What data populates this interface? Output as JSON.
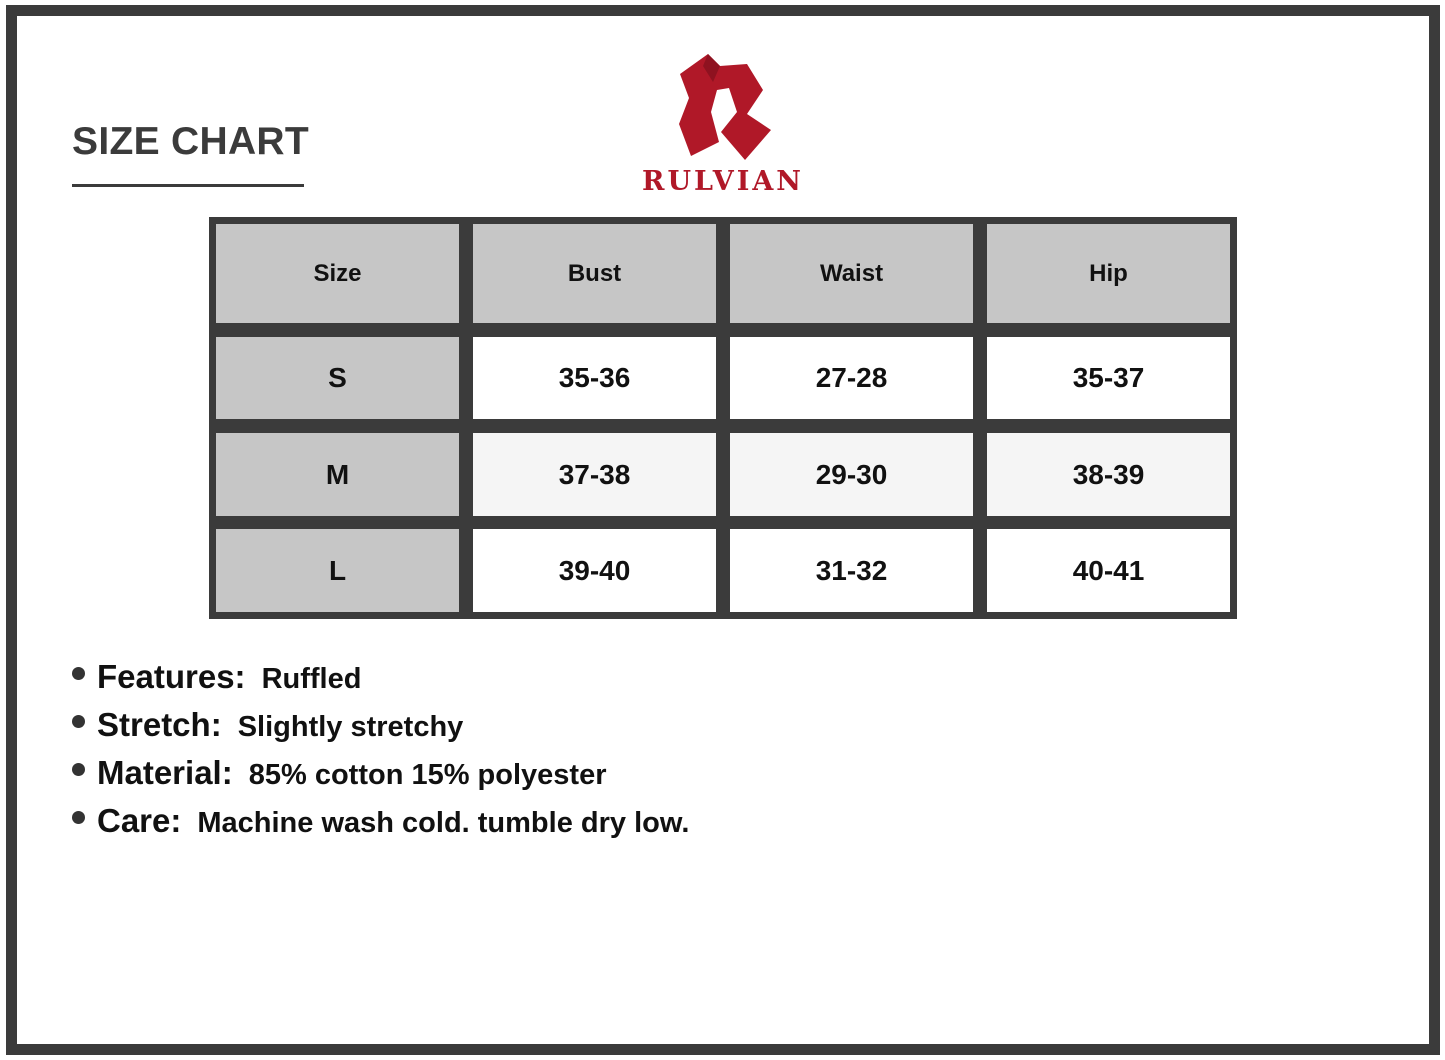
{
  "title": "SIZE CHART",
  "brand": {
    "name": "RULVIAN",
    "color": "#b01828"
  },
  "table": {
    "headers": [
      "Size",
      "Bust",
      "Waist",
      "Hip"
    ],
    "rows": [
      [
        "S",
        "35-36",
        "27-28",
        "35-37"
      ],
      [
        "M",
        "37-38",
        "29-30",
        "38-39"
      ],
      [
        "L",
        "39-40",
        "31-32",
        "40-41"
      ]
    ]
  },
  "features": [
    {
      "label": "Features:",
      "value": "Ruffled"
    },
    {
      "label": "Stretch:",
      "value": "Slightly stretchy"
    },
    {
      "label": "Material:",
      "value": "85% cotton 15% polyester"
    },
    {
      "label": "Care:",
      "value": "Machine wash cold. tumble dry low."
    }
  ]
}
